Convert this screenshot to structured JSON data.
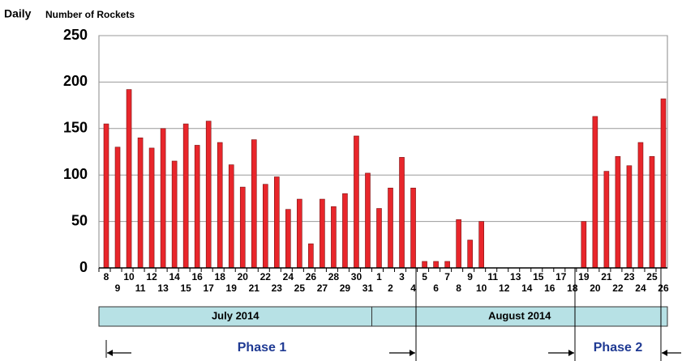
{
  "chart_data": {
    "type": "bar",
    "title": "Daily",
    "y_axis_label": "Number of Rockets",
    "categories": [
      "8",
      "9",
      "10",
      "11",
      "12",
      "13",
      "14",
      "15",
      "16",
      "17",
      "18",
      "19",
      "20",
      "21",
      "22",
      "23",
      "24",
      "25",
      "26",
      "27",
      "28",
      "29",
      "30",
      "31",
      "1",
      "2",
      "3",
      "4",
      "5",
      "6",
      "7",
      "8",
      "9",
      "10",
      "11",
      "12",
      "13",
      "14",
      "15",
      "16",
      "17",
      "18",
      "19",
      "20",
      "21",
      "22",
      "23",
      "24",
      "25",
      "26"
    ],
    "values": [
      155,
      130,
      192,
      140,
      129,
      150,
      115,
      155,
      132,
      158,
      135,
      111,
      87,
      138,
      90,
      98,
      63,
      74,
      26,
      74,
      66,
      80,
      142,
      102,
      64,
      86,
      119,
      86,
      7,
      7,
      7,
      52,
      30,
      50,
      0,
      0,
      0,
      0,
      0,
      0,
      0,
      0,
      50,
      163,
      104,
      120,
      110,
      135,
      120,
      182
    ],
    "color": "#e8262b",
    "ylim": [
      0,
      250
    ],
    "yticks": [
      0,
      50,
      100,
      150,
      200,
      250
    ],
    "grid": true,
    "months": [
      "July 2014",
      "August 2014"
    ],
    "phases": [
      "Phase 1",
      "Phase 2"
    ]
  }
}
